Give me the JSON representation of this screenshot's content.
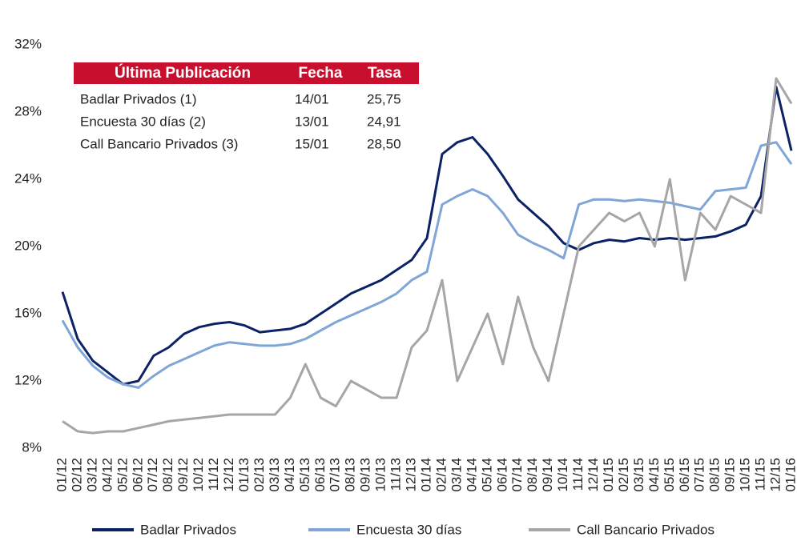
{
  "chart_data": {
    "type": "line",
    "categories": [
      "01/12",
      "02/12",
      "03/12",
      "04/12",
      "05/12",
      "06/12",
      "07/12",
      "08/12",
      "09/12",
      "10/12",
      "11/12",
      "12/12",
      "01/13",
      "02/13",
      "03/13",
      "04/13",
      "05/13",
      "06/13",
      "07/13",
      "08/13",
      "09/13",
      "10/13",
      "11/13",
      "12/13",
      "01/14",
      "02/14",
      "03/14",
      "04/14",
      "05/14",
      "06/14",
      "07/14",
      "08/14",
      "09/14",
      "10/14",
      "11/14",
      "12/14",
      "01/15",
      "02/15",
      "03/15",
      "04/15",
      "05/15",
      "06/15",
      "07/15",
      "08/15",
      "09/15",
      "10/15",
      "11/15",
      "12/15",
      "01/16"
    ],
    "series": [
      {
        "name": "Badlar Privados",
        "color": "#0b2265",
        "values": [
          17.3,
          14.5,
          13.2,
          12.5,
          11.8,
          12.0,
          13.5,
          14.0,
          14.8,
          15.2,
          15.4,
          15.5,
          15.3,
          14.9,
          15.0,
          15.1,
          15.4,
          16.0,
          16.6,
          17.2,
          17.6,
          18.0,
          18.6,
          19.2,
          20.5,
          25.5,
          26.2,
          26.5,
          25.5,
          24.2,
          22.8,
          22.0,
          21.2,
          20.2,
          19.8,
          20.2,
          20.4,
          20.3,
          20.5,
          20.4,
          20.5,
          20.4,
          20.5,
          20.6,
          20.9,
          21.3,
          23.0,
          29.5,
          25.7
        ]
      },
      {
        "name": "Encuesta 30 días",
        "color": "#7fa6d6",
        "values": [
          15.6,
          14.0,
          12.9,
          12.2,
          11.8,
          11.6,
          12.3,
          12.9,
          13.3,
          13.7,
          14.1,
          14.3,
          14.2,
          14.1,
          14.1,
          14.2,
          14.5,
          15.0,
          15.5,
          15.9,
          16.3,
          16.7,
          17.2,
          18.0,
          18.5,
          22.5,
          23.0,
          23.4,
          23.0,
          22.0,
          20.7,
          20.2,
          19.8,
          19.3,
          22.5,
          22.8,
          22.8,
          22.7,
          22.8,
          22.7,
          22.6,
          22.4,
          22.2,
          23.3,
          23.4,
          23.5,
          26.0,
          26.2,
          24.9
        ]
      },
      {
        "name": "Call Bancario Privados",
        "color": "#a6a6a6",
        "values": [
          9.6,
          9.0,
          8.9,
          9.0,
          9.0,
          9.2,
          9.4,
          9.6,
          9.7,
          9.8,
          9.9,
          10.0,
          10.0,
          10.0,
          10.0,
          11.0,
          13.0,
          11.0,
          10.5,
          12.0,
          11.5,
          11.0,
          11.0,
          14.0,
          15.0,
          18.0,
          12.0,
          14.0,
          16.0,
          13.0,
          17.0,
          14.0,
          12.0,
          16.0,
          20.0,
          21.0,
          22.0,
          21.5,
          22.0,
          20.0,
          24.0,
          18.0,
          22.0,
          21.0,
          23.0,
          22.5,
          22.0,
          30.0,
          28.5
        ]
      }
    ],
    "ylim": [
      8,
      34
    ],
    "yticks": [
      {
        "value": 8,
        "label": "8%"
      },
      {
        "value": 12,
        "label": "12%"
      },
      {
        "value": 16,
        "label": "16%"
      },
      {
        "value": 20,
        "label": "20%"
      },
      {
        "value": 24,
        "label": "24%"
      },
      {
        "value": 28,
        "label": "28%"
      },
      {
        "value": 32,
        "label": "32%"
      }
    ],
    "grid": false,
    "legend": "bottom",
    "inset_table": {
      "header": [
        "Última Publicación",
        "Fecha",
        "Tasa"
      ],
      "header_color": "#c8102e",
      "rows": [
        [
          "Badlar Privados (1)",
          "14/01",
          "25,75"
        ],
        [
          "Encuesta 30 días (2)",
          "13/01",
          "24,91"
        ],
        [
          "Call Bancario Privados (3)",
          "15/01",
          "28,50"
        ]
      ]
    }
  }
}
